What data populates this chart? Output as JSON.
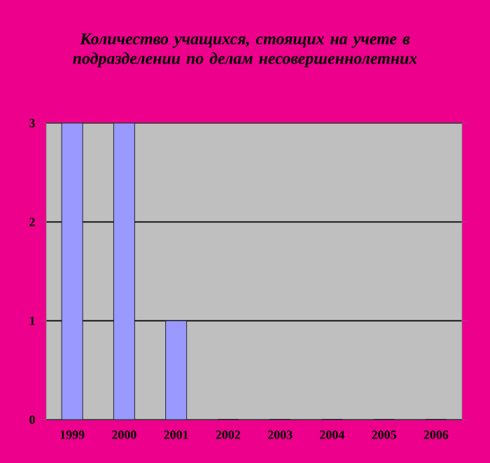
{
  "chart_data": {
    "type": "bar",
    "title": "Количество учащихся, стоящих на учете в подразделении по делам несовершеннолетних",
    "categories": [
      "1999",
      "2000",
      "2001",
      "2002",
      "2003",
      "2004",
      "2005",
      "2006"
    ],
    "values": [
      3,
      3,
      1,
      0,
      0,
      0,
      0,
      0
    ],
    "color": "#9999ff",
    "ylim": [
      0,
      3
    ],
    "yticks": [
      0,
      1,
      2,
      3
    ],
    "grid": "y"
  }
}
